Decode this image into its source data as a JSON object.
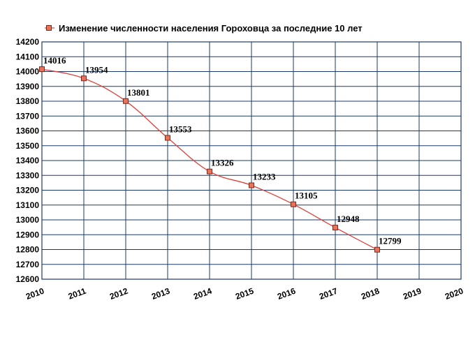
{
  "chart_data": {
    "type": "line",
    "title": "",
    "xlabel": "",
    "ylabel": "",
    "legend": {
      "placement": "top-left",
      "entries": [
        "Изменение численности населения Гороховца за последние 10 лет"
      ]
    },
    "x_ticks": [
      "2010",
      "2011",
      "2012",
      "2013",
      "2014",
      "2015",
      "2016",
      "2017",
      "2018",
      "2019",
      "2020"
    ],
    "y_ticks": [
      "12600",
      "12700",
      "12800",
      "12900",
      "13000",
      "13100",
      "13200",
      "13300",
      "13400",
      "13500",
      "13600",
      "13700",
      "13800",
      "13900",
      "14000",
      "14100",
      "14200"
    ],
    "xlim": [
      2010,
      2020
    ],
    "ylim": [
      12600,
      14200
    ],
    "grid": true,
    "series": [
      {
        "name": "Изменение численности населения Гороховца за последние 10 лет",
        "x": [
          2010,
          2011,
          2012,
          2013,
          2014,
          2015,
          2016,
          2017,
          2018
        ],
        "values": [
          14016,
          13954,
          13801,
          13553,
          13326,
          13233,
          13105,
          12948,
          12799
        ],
        "labels": [
          "14016",
          "13954",
          "13801",
          "13553",
          "13326",
          "13233",
          "13105",
          "12948",
          "12799"
        ]
      }
    ],
    "colors": {
      "line": "#e0403a",
      "marker_fill": "#e8735a",
      "marker_stroke": "#7a2a1a",
      "grid": "#1a3a6a"
    }
  }
}
